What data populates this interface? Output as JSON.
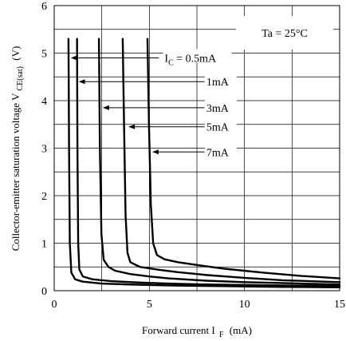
{
  "chart_data": {
    "type": "line",
    "title": "",
    "xlabel": {
      "main": "Forward current I",
      "sub": "F",
      "unit": "(mA)"
    },
    "ylabel": {
      "main": "Collector-emitter saturation voltage V",
      "sub": "CE(sat)",
      "unit": "(V)"
    },
    "xlim": [
      0,
      15
    ],
    "ylim": [
      0,
      6
    ],
    "xticks": [
      0,
      5,
      10,
      15
    ],
    "yticks": [
      0,
      1,
      2,
      3,
      4,
      5,
      6
    ],
    "x_minor_ticks": [
      2.5,
      7.5,
      12.5
    ],
    "y_minor_ticks": [
      0.5,
      1.5,
      2.5,
      3.5,
      4.5,
      5.5
    ],
    "grid": true,
    "condition_label": "Ta = 25°C",
    "series": [
      {
        "name": "I_C = 0.5mA",
        "label_prefix": "I",
        "label_sub": "C",
        "label_suffix": " = 0.5mA",
        "x": [
          0.75,
          0.78,
          0.82,
          0.9,
          1.1,
          1.5,
          2.5,
          4,
          6,
          8,
          10,
          12,
          15
        ],
        "y": [
          5.3,
          3.0,
          1.0,
          0.38,
          0.24,
          0.19,
          0.15,
          0.13,
          0.11,
          0.1,
          0.09,
          0.08,
          0.07
        ]
      },
      {
        "name": "1mA",
        "label_prefix": "",
        "label_sub": "",
        "label_suffix": "1mA",
        "x": [
          1.2,
          1.22,
          1.26,
          1.32,
          1.5,
          2.0,
          3,
          4.5,
          6,
          8,
          10,
          12,
          15
        ],
        "y": [
          5.3,
          3.0,
          1.0,
          0.45,
          0.3,
          0.24,
          0.2,
          0.17,
          0.15,
          0.13,
          0.12,
          0.11,
          0.1
        ]
      },
      {
        "name": "3mA",
        "label_prefix": "",
        "label_sub": "",
        "label_suffix": "3mA",
        "x": [
          2.35,
          2.4,
          2.48,
          2.6,
          2.85,
          3.2,
          4,
          5,
          6,
          8,
          10,
          12,
          15
        ],
        "y": [
          5.3,
          3.0,
          1.2,
          0.65,
          0.5,
          0.42,
          0.35,
          0.3,
          0.26,
          0.21,
          0.18,
          0.16,
          0.13
        ]
      },
      {
        "name": "5mA",
        "label_prefix": "",
        "label_sub": "",
        "label_suffix": "5mA",
        "x": [
          3.6,
          3.67,
          3.75,
          3.85,
          4.0,
          4.5,
          5.5,
          6.5,
          8,
          10,
          12,
          15
        ],
        "y": [
          5.3,
          3.5,
          1.6,
          0.8,
          0.6,
          0.5,
          0.44,
          0.39,
          0.33,
          0.27,
          0.22,
          0.18
        ]
      },
      {
        "name": "7mA",
        "label_prefix": "",
        "label_sub": "",
        "label_suffix": "7mA",
        "x": [
          4.9,
          4.98,
          5.08,
          5.2,
          5.4,
          5.8,
          6.5,
          7.5,
          9,
          11,
          13,
          15
        ],
        "y": [
          5.3,
          3.5,
          1.8,
          1.0,
          0.75,
          0.66,
          0.6,
          0.54,
          0.46,
          0.38,
          0.31,
          0.26
        ]
      }
    ]
  }
}
